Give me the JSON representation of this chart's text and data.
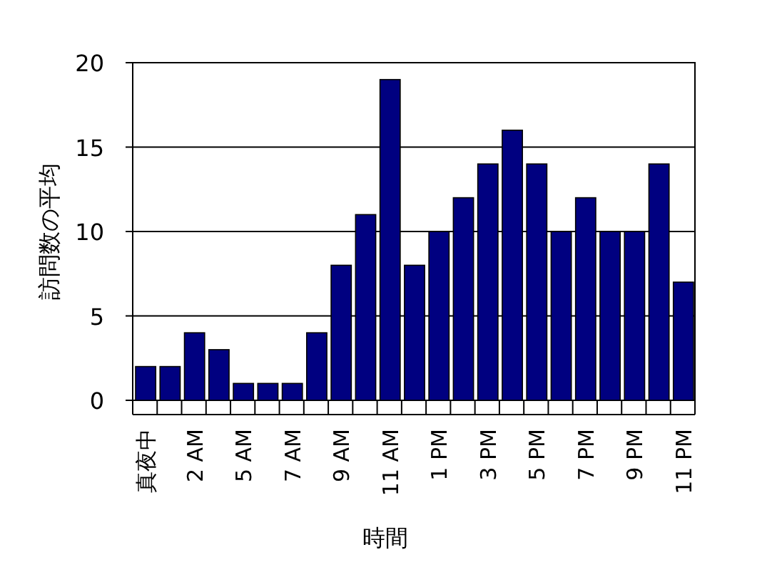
{
  "chart_data": {
    "type": "bar",
    "xlabel": "時間",
    "ylabel": "訪問数の平均",
    "categories": [
      "真夜中",
      null,
      "2 AM",
      null,
      "5 AM",
      null,
      "7 AM",
      null,
      "9 AM",
      null,
      "11 AM",
      null,
      "1 PM",
      null,
      "3 PM",
      null,
      "5 PM",
      null,
      "7 PM",
      null,
      "9 PM",
      null,
      "11 PM"
    ],
    "values": [
      2,
      2,
      4,
      3,
      1,
      1,
      1,
      4,
      8,
      11,
      19,
      8,
      10,
      12,
      14,
      16,
      14,
      10,
      12,
      10,
      10,
      14,
      7
    ],
    "color": "#000080",
    "ylim": [
      0,
      20
    ],
    "yticks": [
      0,
      5,
      10,
      15,
      20
    ],
    "grid": "y"
  }
}
